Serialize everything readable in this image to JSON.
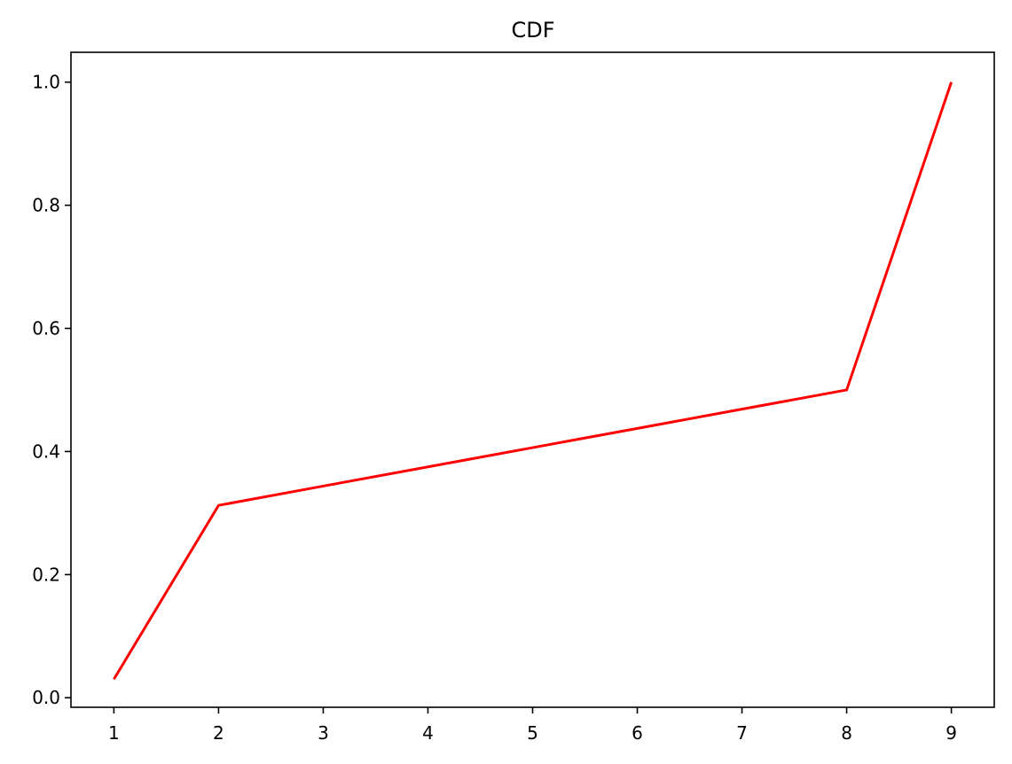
{
  "chart_data": {
    "type": "line",
    "title": "CDF",
    "xlabel": "",
    "ylabel": "",
    "xlim": [
      0.59,
      9.41
    ],
    "ylim": [
      -0.0155,
      1.0485
    ],
    "x_ticks": [
      1,
      2,
      3,
      4,
      5,
      6,
      7,
      8,
      9
    ],
    "x_tick_labels": [
      "1",
      "2",
      "3",
      "4",
      "5",
      "6",
      "7",
      "8",
      "9"
    ],
    "y_ticks": [
      0.0,
      0.2,
      0.4,
      0.6,
      0.8,
      1.0
    ],
    "y_tick_labels": [
      "0.0",
      "0.2",
      "0.4",
      "0.6",
      "0.8",
      "1.0"
    ],
    "grid": false,
    "legend": "none",
    "series": [
      {
        "color": "#ff0000",
        "x": [
          1,
          2,
          3,
          4,
          5,
          6,
          7,
          8,
          9
        ],
        "y": [
          0.03,
          0.3125,
          0.3438,
          0.375,
          0.4063,
          0.4375,
          0.4688,
          0.5,
          1.0
        ]
      }
    ]
  }
}
